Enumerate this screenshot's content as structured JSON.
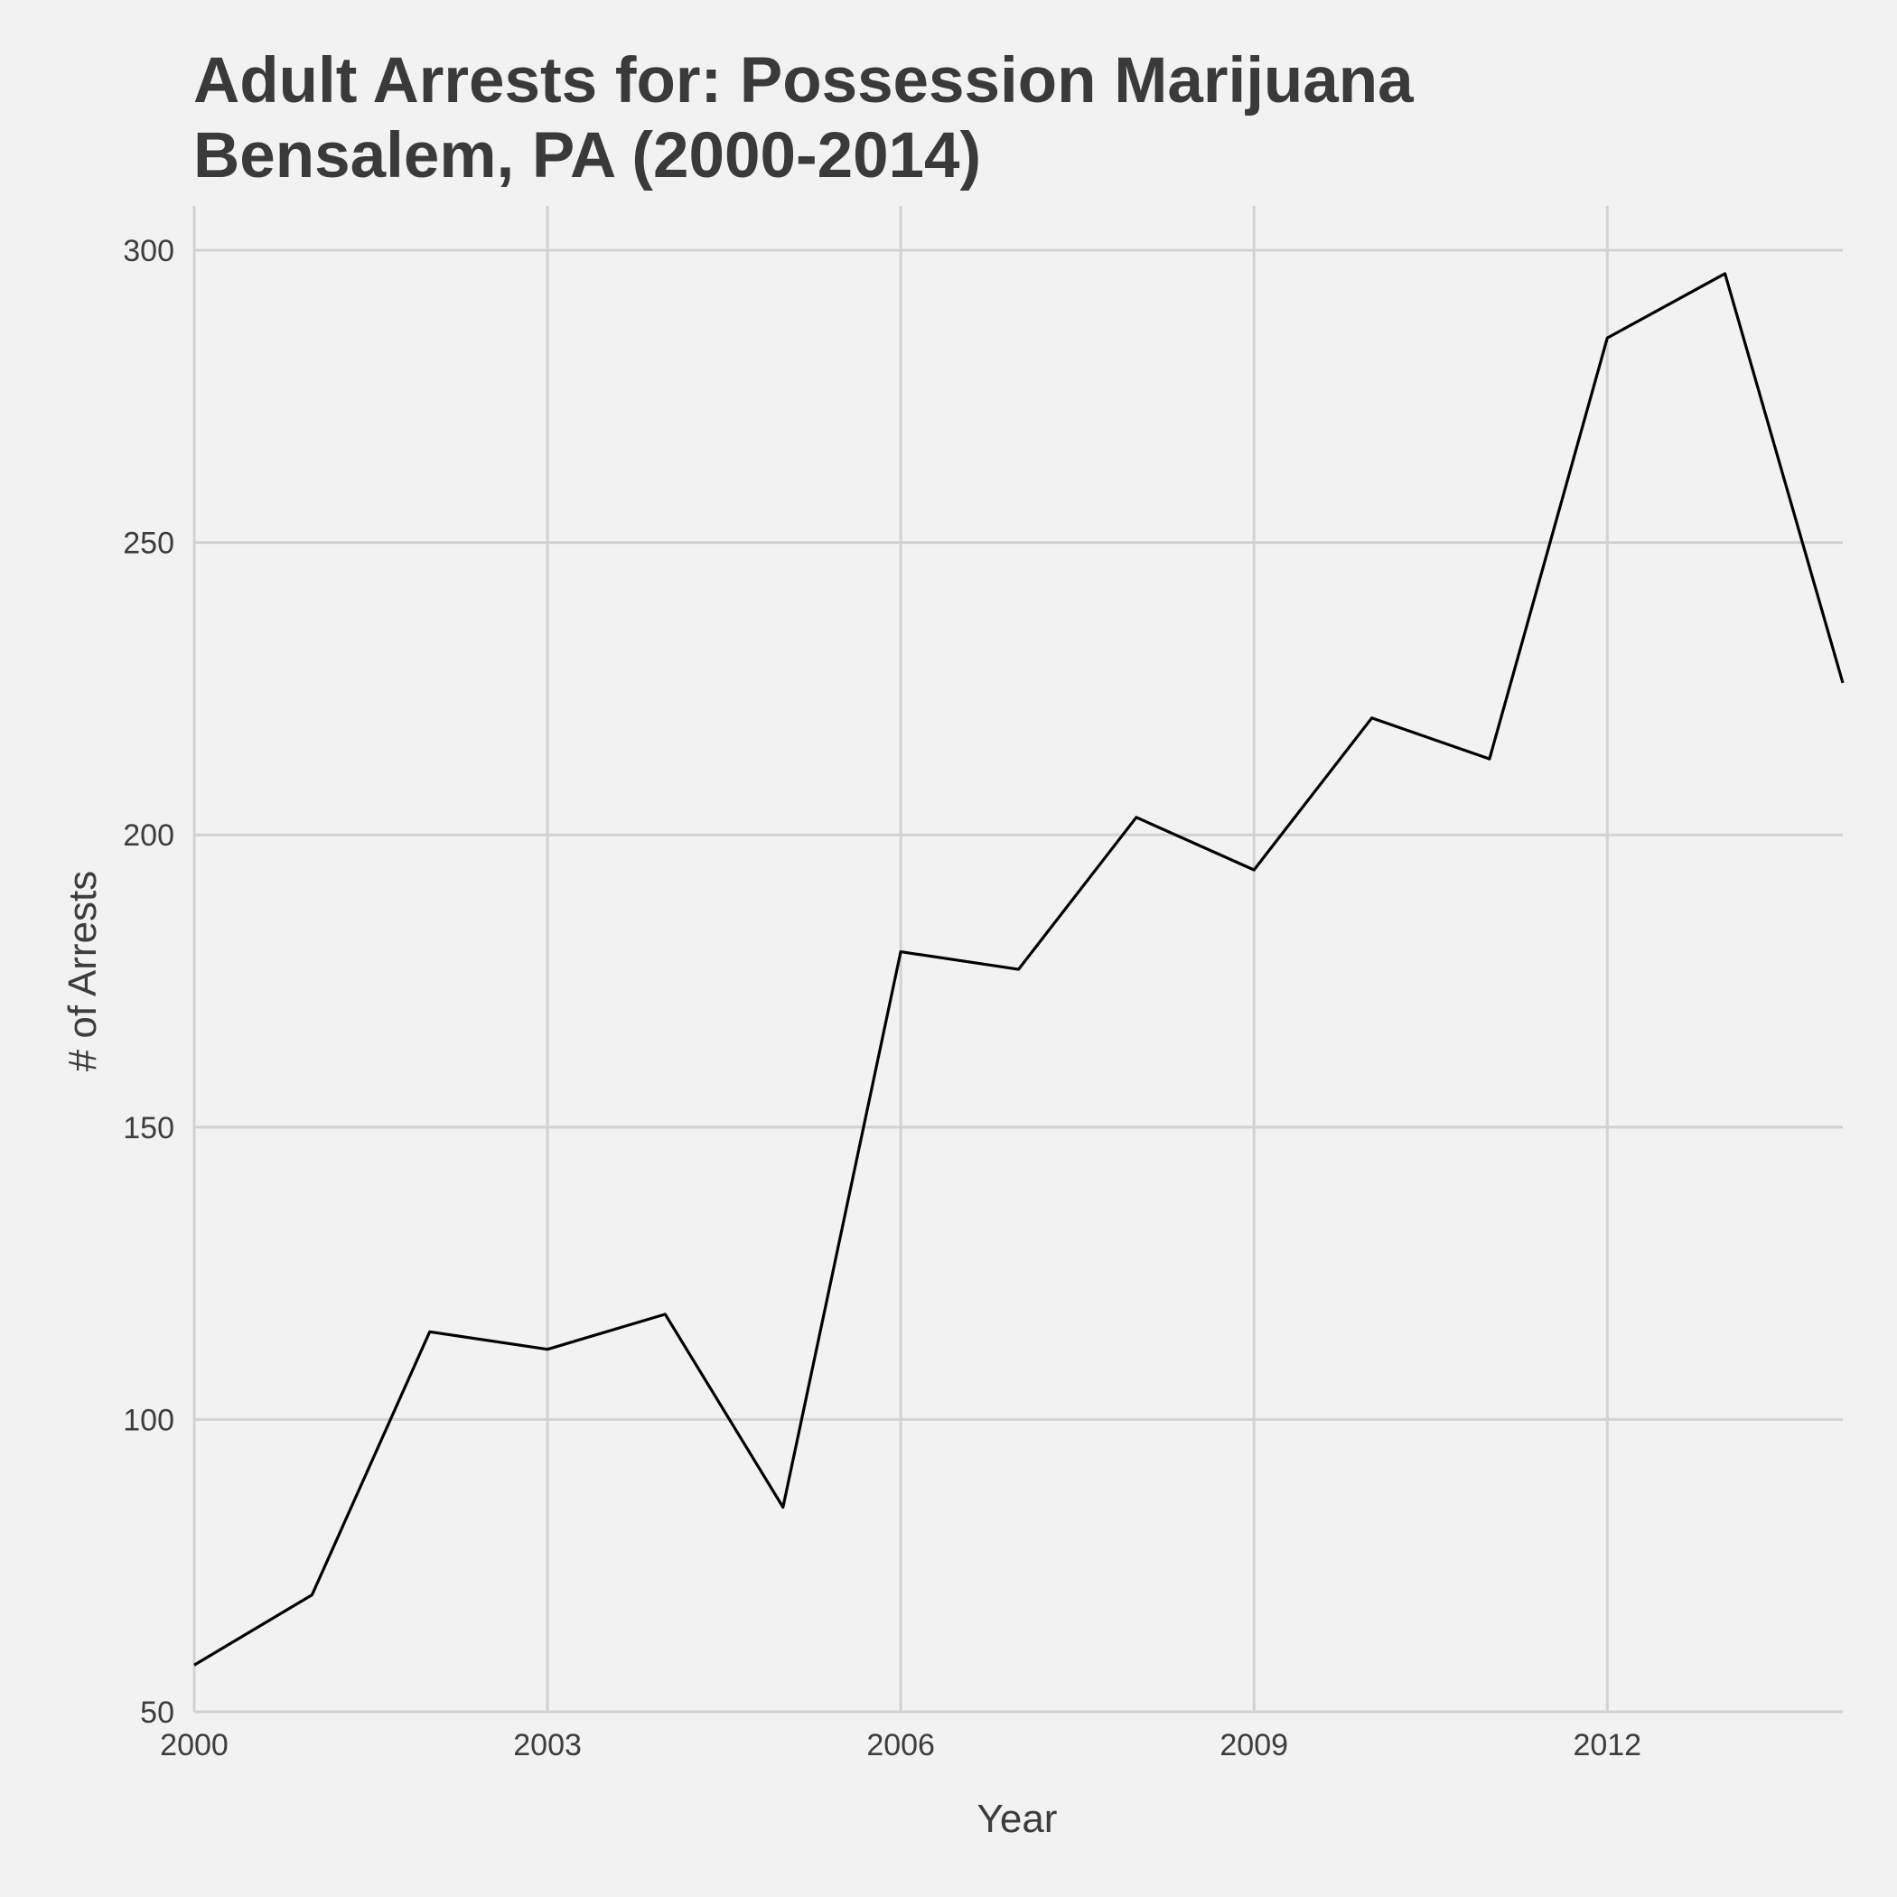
{
  "chart_data": {
    "type": "line",
    "title_line1": "Adult Arrests for: Possession  Marijuana",
    "title_line2": "Bensalem, PA (2000-2014)",
    "xlabel": "Year",
    "ylabel": "# of Arrests",
    "xlim": [
      2000,
      2014
    ],
    "ylim": [
      50,
      300
    ],
    "x_ticks": [
      2000,
      2003,
      2006,
      2009,
      2012
    ],
    "y_ticks": [
      50,
      100,
      150,
      200,
      250,
      300
    ],
    "grid": true,
    "line_color": "#000000",
    "series": [
      {
        "x": [
          2000,
          2001,
          2002,
          2003,
          2004,
          2005,
          2006,
          2007,
          2008,
          2009,
          2010,
          2011,
          2012,
          2013,
          2014
        ],
        "values": [
          58,
          70,
          115,
          112,
          118,
          85,
          180,
          177,
          203,
          194,
          220,
          213,
          285,
          296,
          226
        ]
      }
    ]
  }
}
